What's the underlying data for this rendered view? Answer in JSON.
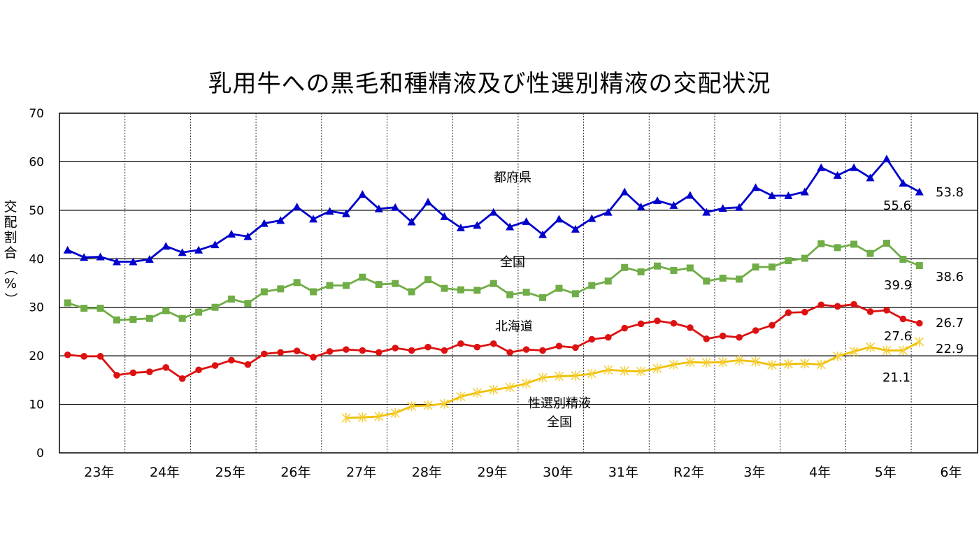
{
  "chart_data": {
    "type": "line",
    "title": "乳用牛への黒毛和種精液及び性選別精液の交配状況",
    "ylabel": "交配割合（%）",
    "ylim": [
      0,
      70
    ],
    "yticks": [
      0,
      10,
      20,
      30,
      40,
      50,
      60,
      70
    ],
    "grid": true,
    "x_categories": [
      "23年",
      "24年",
      "25年",
      "26年",
      "27年",
      "28年",
      "29年",
      "30年",
      "31年",
      "R2年",
      "3年",
      "4年",
      "5年",
      "6年"
    ],
    "points_per_year": 4,
    "series": [
      {
        "name": "都府県",
        "color": "#0000CC",
        "marker": "triangle",
        "start_index": 0,
        "values": [
          41.8,
          40.3,
          40.4,
          39.4,
          39.4,
          39.9,
          42.6,
          41.3,
          41.8,
          42.9,
          45.1,
          44.6,
          47.3,
          47.9,
          50.7,
          48.2,
          49.8,
          49.3,
          53.3,
          50.3,
          50.6,
          47.6,
          51.7,
          48.7,
          46.4,
          46.9,
          49.6,
          46.6,
          47.7,
          45.0,
          48.2,
          46.1,
          48.3,
          49.6,
          53.8,
          50.7,
          52.0,
          51.0,
          53.1,
          49.6,
          50.4,
          50.6,
          54.7,
          53.0,
          53.0,
          53.8,
          58.8,
          57.2,
          58.8,
          56.7,
          60.6,
          55.6,
          53.8
        ]
      },
      {
        "name": "全国",
        "color": "#70AD47",
        "marker": "square",
        "start_index": 0,
        "values": [
          30.9,
          29.8,
          29.8,
          27.4,
          27.5,
          27.7,
          29.3,
          27.7,
          29.0,
          30.0,
          31.7,
          30.8,
          33.2,
          33.8,
          35.1,
          33.2,
          34.5,
          34.5,
          36.2,
          34.7,
          34.9,
          33.2,
          35.7,
          33.9,
          33.6,
          33.5,
          34.9,
          32.6,
          33.1,
          32.0,
          33.9,
          32.8,
          34.5,
          35.4,
          38.2,
          37.3,
          38.5,
          37.6,
          38.1,
          35.4,
          36.0,
          35.8,
          38.3,
          38.3,
          39.6,
          40.1,
          43.1,
          42.3,
          43.0,
          41.1,
          43.2,
          39.9,
          38.6
        ]
      },
      {
        "name": "北海道",
        "color": "#DD1111",
        "marker": "circle",
        "start_index": 0,
        "values": [
          20.2,
          19.9,
          19.9,
          16.0,
          16.5,
          16.7,
          17.6,
          15.3,
          17.1,
          18.0,
          19.1,
          18.2,
          20.4,
          20.7,
          21.0,
          19.7,
          20.9,
          21.3,
          21.1,
          20.7,
          21.6,
          21.1,
          21.8,
          21.1,
          22.5,
          21.8,
          22.5,
          20.7,
          21.3,
          21.1,
          22.0,
          21.7,
          23.4,
          23.8,
          25.7,
          26.6,
          27.2,
          26.7,
          25.8,
          23.5,
          24.1,
          23.8,
          25.2,
          26.3,
          28.9,
          29.0,
          30.5,
          30.2,
          30.6,
          29.1,
          29.4,
          27.6,
          26.7
        ]
      },
      {
        "name": "性選別精液 全国",
        "color": "#F0C000",
        "marker": "star",
        "start_index": 17,
        "values": [
          7.2,
          7.3,
          7.5,
          8.2,
          9.6,
          9.8,
          10.1,
          11.6,
          12.4,
          13.0,
          13.5,
          14.3,
          15.5,
          15.8,
          15.9,
          16.3,
          17.1,
          16.9,
          16.8,
          17.4,
          18.2,
          18.7,
          18.6,
          18.7,
          19.1,
          18.8,
          18.1,
          18.3,
          18.4,
          18.2,
          19.9,
          20.9,
          21.8,
          21.1,
          21.1,
          22.9
        ]
      }
    ],
    "series_labels": [
      "都府県",
      "全国",
      "北海道",
      "性選別精液",
      "全国"
    ],
    "data_labels": [
      "53.8",
      "55.6",
      "38.6",
      "39.9",
      "26.7",
      "27.6",
      "22.9",
      "21.1"
    ]
  }
}
